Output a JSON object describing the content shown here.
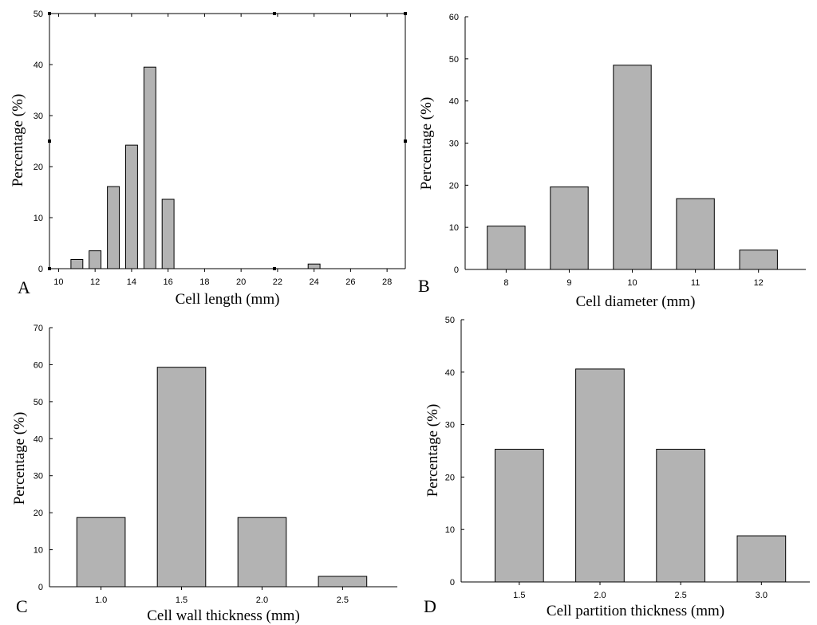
{
  "chart_data": [
    {
      "type": "bar",
      "panel": "A",
      "xlabel": "Cell length (mm)",
      "ylabel": "Percentage (%)",
      "xlim": [
        9.5,
        29
      ],
      "ylim": [
        0,
        50
      ],
      "xticks": [
        10,
        12,
        14,
        16,
        18,
        20,
        22,
        24,
        26,
        28
      ],
      "yticks": [
        0,
        10,
        20,
        30,
        40,
        50
      ],
      "bar_width": 0.65,
      "x": [
        11,
        12,
        13,
        14,
        15,
        16,
        24
      ],
      "values": [
        1.8,
        3.5,
        16.1,
        24.2,
        39.5,
        13.6,
        0.9
      ]
    },
    {
      "type": "bar",
      "panel": "B",
      "xlabel": "Cell diameter (mm)",
      "ylabel": "Percentage (%)",
      "xlim": [
        7.35,
        12.75
      ],
      "ylim": [
        0,
        60
      ],
      "xticks": [
        8,
        9,
        10,
        11,
        12
      ],
      "yticks": [
        0,
        10,
        20,
        30,
        40,
        50,
        60
      ],
      "bar_width": 0.6,
      "x": [
        8,
        9,
        10,
        11,
        12
      ],
      "values": [
        10.3,
        19.6,
        48.5,
        16.8,
        4.6
      ]
    },
    {
      "type": "bar",
      "panel": "C",
      "xlabel": "Cell wall thickness (mm)",
      "ylabel": "Percentage (%)",
      "xlim": [
        0.68,
        2.84
      ],
      "ylim": [
        0,
        70
      ],
      "xticks": [
        "1.0",
        "1.5",
        "2.0",
        "2.5"
      ],
      "yticks": [
        0,
        10,
        20,
        30,
        40,
        50,
        60,
        70
      ],
      "bar_width": 0.3,
      "x": [
        1.0,
        1.5,
        2.0,
        2.5
      ],
      "values": [
        18.7,
        59.3,
        18.7,
        2.8
      ]
    },
    {
      "type": "bar",
      "panel": "D",
      "xlabel": "Cell partition thickness (mm)",
      "ylabel": "Percentage (%)",
      "xlim": [
        1.14,
        3.3
      ],
      "ylim": [
        0,
        50
      ],
      "xticks": [
        "1.5",
        "2.0",
        "2.5",
        "3.0"
      ],
      "yticks": [
        0,
        10,
        20,
        30,
        40,
        50
      ],
      "bar_width": 0.3,
      "x": [
        1.5,
        2.0,
        2.5,
        3.0
      ],
      "values": [
        25.3,
        40.6,
        25.3,
        8.8
      ]
    }
  ]
}
